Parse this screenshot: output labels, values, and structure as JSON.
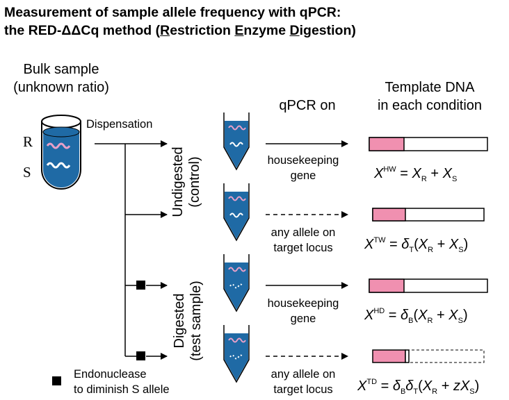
{
  "title": {
    "line1": "Measurement of sample allele frequency with qPCR:",
    "line2_prefix": "the RED-ΔΔCq method (",
    "r": "R",
    "estriction": "estriction ",
    "e": "E",
    "nzyme": "nzyme ",
    "d": "D",
    "igestion": "igestion)"
  },
  "bulk_sample": {
    "line1": "Bulk sample",
    "line2": "(unknown ratio)",
    "r_label": "R",
    "s_label": "S"
  },
  "dispensation": "Dispensation",
  "group_labels": {
    "undigested_1": "Undigested",
    "undigested_2": "(control)",
    "digested_1": "Digested",
    "digested_2": "(test sample)"
  },
  "column_headers": {
    "qpcr": "qPCR on",
    "template_1": "Template DNA",
    "template_2": "in each condition"
  },
  "rows": [
    {
      "target_1": "housekeeping",
      "target_2": "gene",
      "arrow": "solid",
      "eq": {
        "X": "X",
        "sup": "HW",
        "rhs": "= X_R + X_S"
      }
    },
    {
      "target_1": "any allele on",
      "target_2": "target locus",
      "arrow": "dashed",
      "eq": {
        "X": "X",
        "sup": "TW",
        "rhs": "= δ_T(X_R + X_S)"
      }
    },
    {
      "target_1": "housekeeping",
      "target_2": "gene",
      "arrow": "solid",
      "eq": {
        "X": "X",
        "sup": "HD",
        "rhs": "= δ_B(X_R + X_S)"
      }
    },
    {
      "target_1": "any allele on",
      "target_2": "target locus",
      "arrow": "dashed",
      "eq": {
        "X": "X",
        "sup": "TD",
        "rhs": "= δ_Bδ_T(X_R + zX_S)"
      }
    }
  ],
  "eq_symbols": {
    "eq": "=",
    "plus": "+",
    "X": "X",
    "R": "R",
    "S": "S",
    "dB": "δ",
    "B": "B",
    "dT": "δ",
    "T": "T",
    "z": "z",
    "lp": "(",
    "rp": ")"
  },
  "legend": {
    "line1": "Endonuclease",
    "line2": "to diminish S allele"
  },
  "colors": {
    "tube_fill": "#1f6aa5",
    "r_strand": "#e8a0c8",
    "s_strand": "#ffffff",
    "bar_r": "#f090b0",
    "bar_s": "#ffffff"
  }
}
